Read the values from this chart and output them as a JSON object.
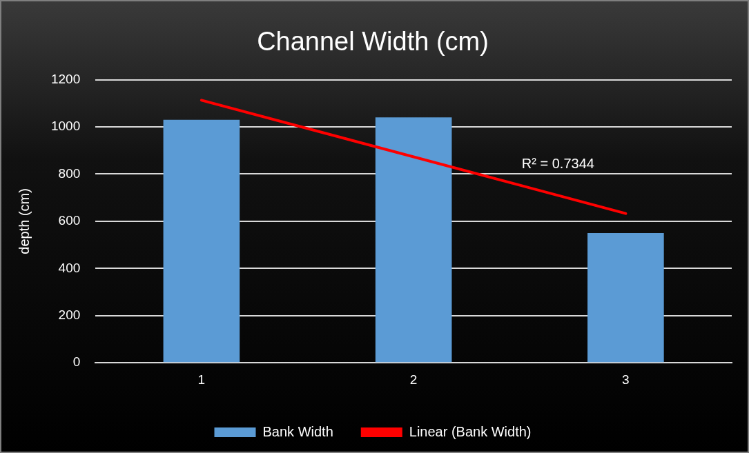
{
  "chart_data": {
    "type": "bar",
    "title": "Channel Width (cm)",
    "ylabel": "depth (cm)",
    "categories": [
      "1",
      "2",
      "3"
    ],
    "series": [
      {
        "name": "Bank Width",
        "color": "#5b9bd5",
        "values": [
          1030,
          1040,
          550
        ]
      },
      {
        "name": "Linear (Bank Width)",
        "type": "line",
        "color": "#ff0000",
        "x": [
          "1",
          "3"
        ],
        "values": [
          1113,
          633
        ],
        "marker": "none",
        "line_style": "solid"
      }
    ],
    "ylim": [
      0,
      1200
    ],
    "yticks": [
      0,
      200,
      400,
      600,
      800,
      1000,
      1200
    ],
    "grid": "y",
    "legend": "bottom",
    "annotations": [
      "R² = 0.7344"
    ]
  }
}
